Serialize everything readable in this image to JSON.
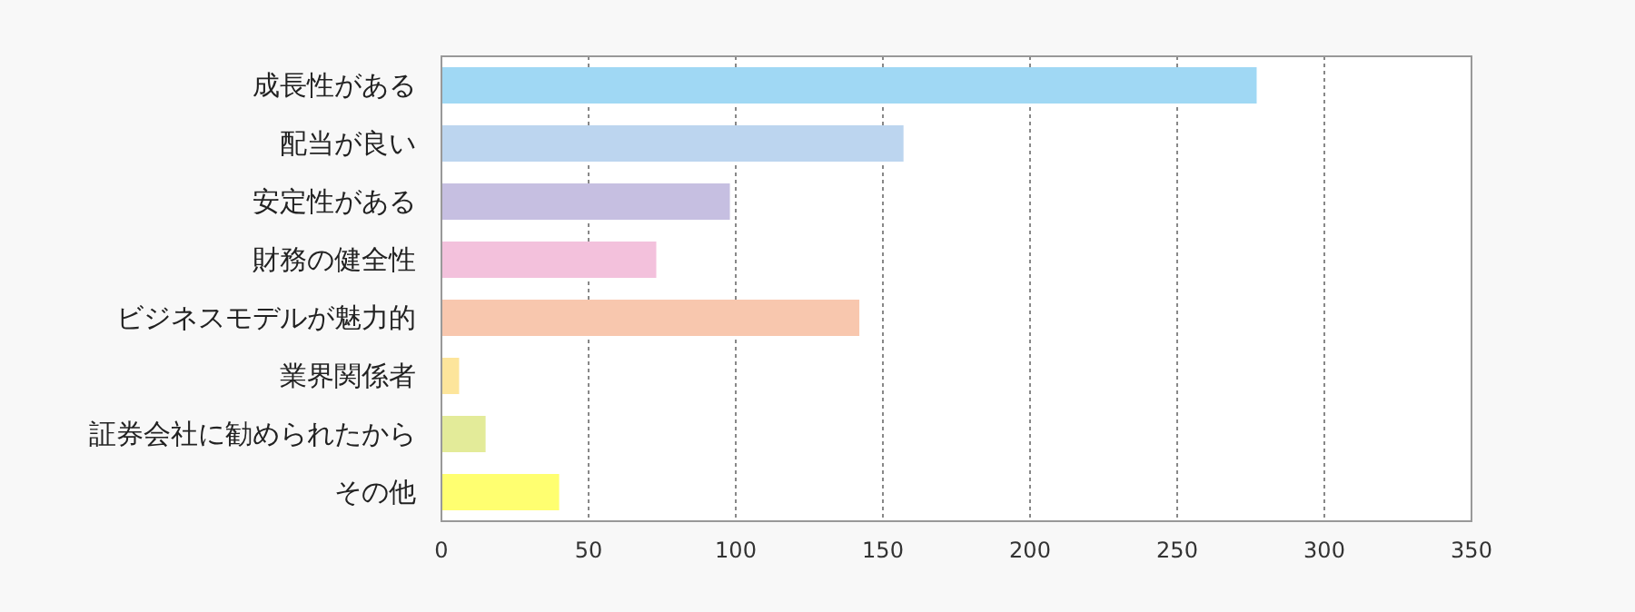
{
  "chart_data": {
    "type": "bar",
    "orientation": "horizontal",
    "categories": [
      "成長性がある",
      "配当が良い",
      "安定性がある",
      "財務の健全性",
      "ビジネスモデルが魅力的",
      "業界関係者",
      "証券会社に勧められたから",
      "その他"
    ],
    "values": [
      277,
      157,
      98,
      73,
      142,
      6,
      15,
      40
    ],
    "colors": [
      "#a0d8f4",
      "#bcd5ef",
      "#c6bfe1",
      "#f3c1dc",
      "#f8c7ae",
      "#fde59b",
      "#e3eb99",
      "#ffff70"
    ],
    "xlim": [
      0,
      350
    ],
    "xticks": [
      0,
      50,
      100,
      150,
      200,
      250,
      300,
      350
    ],
    "grid": "x"
  }
}
